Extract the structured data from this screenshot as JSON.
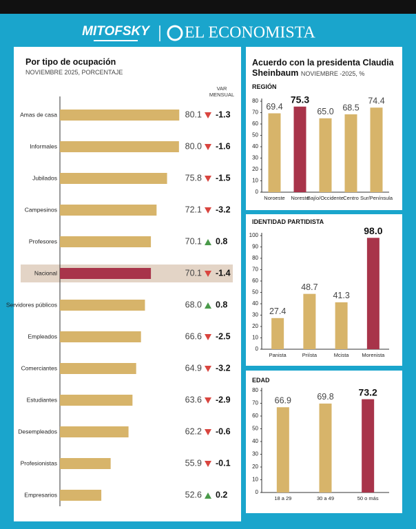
{
  "header": {
    "brand1": "MITOFSKY",
    "brand2": "EL ECONOMISTA"
  },
  "panel": {
    "title": "Acuerdo con la presidenta Claudia Sheinbaum",
    "subtitle": "NOVIEMBRE -2025, %"
  },
  "chart_data": [
    {
      "type": "bar",
      "orientation": "horizontal",
      "title": "Por tipo de ocupación",
      "subtitle": "NOVIEMBRE 2025, PORCENTAJE",
      "changes_label": "VAR MENSUAL",
      "categories": [
        "Amas de casa",
        "Informales",
        "Jubilados",
        "Campesinos",
        "Profesores",
        "Nacional",
        "Servidores públicos",
        "Empleados",
        "Comerciantes",
        "Estudiantes",
        "Desempleados",
        "Profesionistas",
        "Empresarios"
      ],
      "values": [
        80.1,
        80.0,
        75.8,
        72.1,
        70.1,
        70.1,
        68.0,
        66.6,
        64.9,
        63.6,
        62.2,
        55.9,
        52.6
      ],
      "value_labels": [
        "80.1",
        "80.0",
        "75.8",
        "72.1",
        "70.1",
        "70.1",
        "68.0",
        "66.6",
        "64.9",
        "63.6",
        "62.2",
        "55.9",
        "52.6"
      ],
      "changes": [
        -1.3,
        -1.6,
        -1.5,
        -3.2,
        0.8,
        -1.4,
        0.8,
        -2.5,
        -3.2,
        -2.9,
        -0.6,
        -0.1,
        0.2
      ],
      "color": "#d7b46a",
      "colors": [
        "#d7b46a",
        "#d7b46a",
        "#d7b46a",
        "#d7b46a",
        "#d7b46a",
        "#a8344a",
        "#d7b46a",
        "#d7b46a",
        "#d7b46a",
        "#d7b46a",
        "#d7b46a",
        "#d7b46a",
        "#d7b46a"
      ],
      "band_color": "#e3d4c6",
      "xlim": [
        38,
        90
      ]
    },
    {
      "type": "bar",
      "title": "REGIÓN",
      "categories": [
        "Noroeste",
        "Noreste",
        "Bajío/Occidente",
        "Centro",
        "Sur/Península"
      ],
      "values": [
        69.4,
        75.3,
        65.0,
        68.5,
        74.4
      ],
      "value_labels": [
        "69.4",
        "75.3",
        "65.0",
        "68.5",
        "74.4"
      ],
      "color": "#d7b46a",
      "colors": [
        "#d7b46a",
        "#a8344a",
        "#d7b46a",
        "#d7b46a",
        "#d7b46a"
      ],
      "ylim": [
        0,
        80
      ],
      "yticks": [
        0,
        10,
        20,
        30,
        40,
        50,
        60,
        70,
        80
      ],
      "grid": false
    },
    {
      "type": "bar",
      "title": "IDENTIDAD PARTIDISTA",
      "categories": [
        "Panista",
        "Priísta",
        "Mcista",
        "Morenista"
      ],
      "values": [
        27.4,
        48.7,
        41.3,
        98.0
      ],
      "value_labels": [
        "27.4",
        "48.7",
        "41.3",
        "98.0"
      ],
      "color": "#d7b46a",
      "colors": [
        "#d7b46a",
        "#d7b46a",
        "#d7b46a",
        "#a8344a"
      ],
      "ylim": [
        0,
        100
      ],
      "yticks": [
        0,
        10,
        20,
        30,
        40,
        50,
        60,
        70,
        80,
        90,
        100
      ],
      "grid": false
    },
    {
      "type": "bar",
      "title": "EDAD",
      "categories": [
        "18 a 29",
        "30 a 49",
        "50 o más"
      ],
      "values": [
        66.9,
        69.8,
        73.2
      ],
      "value_labels": [
        "66.9",
        "69.8",
        "73.2"
      ],
      "color": "#d7b46a",
      "colors": [
        "#d7b46a",
        "#d7b46a",
        "#a8344a"
      ],
      "ylim": [
        0,
        80
      ],
      "yticks": [
        0,
        10,
        20,
        30,
        40,
        50,
        60,
        70,
        80
      ],
      "grid": false
    }
  ]
}
